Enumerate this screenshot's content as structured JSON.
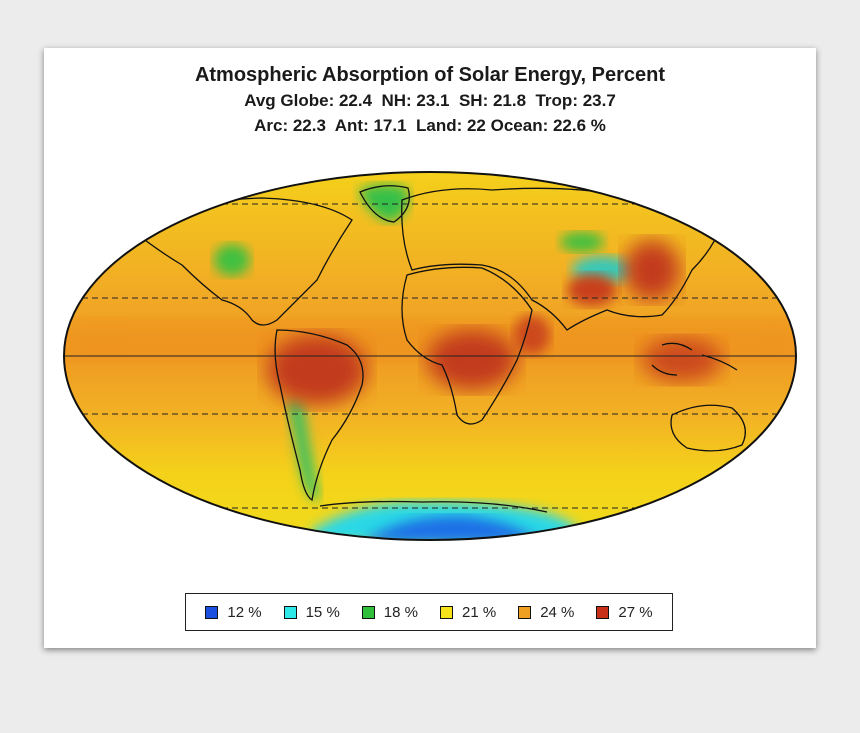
{
  "title": "Atmospheric Absorption of Solar Energy, Percent",
  "stats_line1": "Avg Globe: 22.4  NH: 23.1  SH: 21.8  Trop: 23.7",
  "stats_line2": "Arc: 22.3  Ant: 17.1  Land: 22 Ocean: 22.6 %",
  "legend": [
    {
      "label": "12 %",
      "color": "#1a4fe0"
    },
    {
      "label": "15 %",
      "color": "#2fe8e8"
    },
    {
      "label": "18 %",
      "color": "#2fbf3a"
    },
    {
      "label": "21 %",
      "color": "#f5e21a"
    },
    {
      "label": "24 %",
      "color": "#f0a020"
    },
    {
      "label": "27 %",
      "color": "#c8301a"
    }
  ]
}
